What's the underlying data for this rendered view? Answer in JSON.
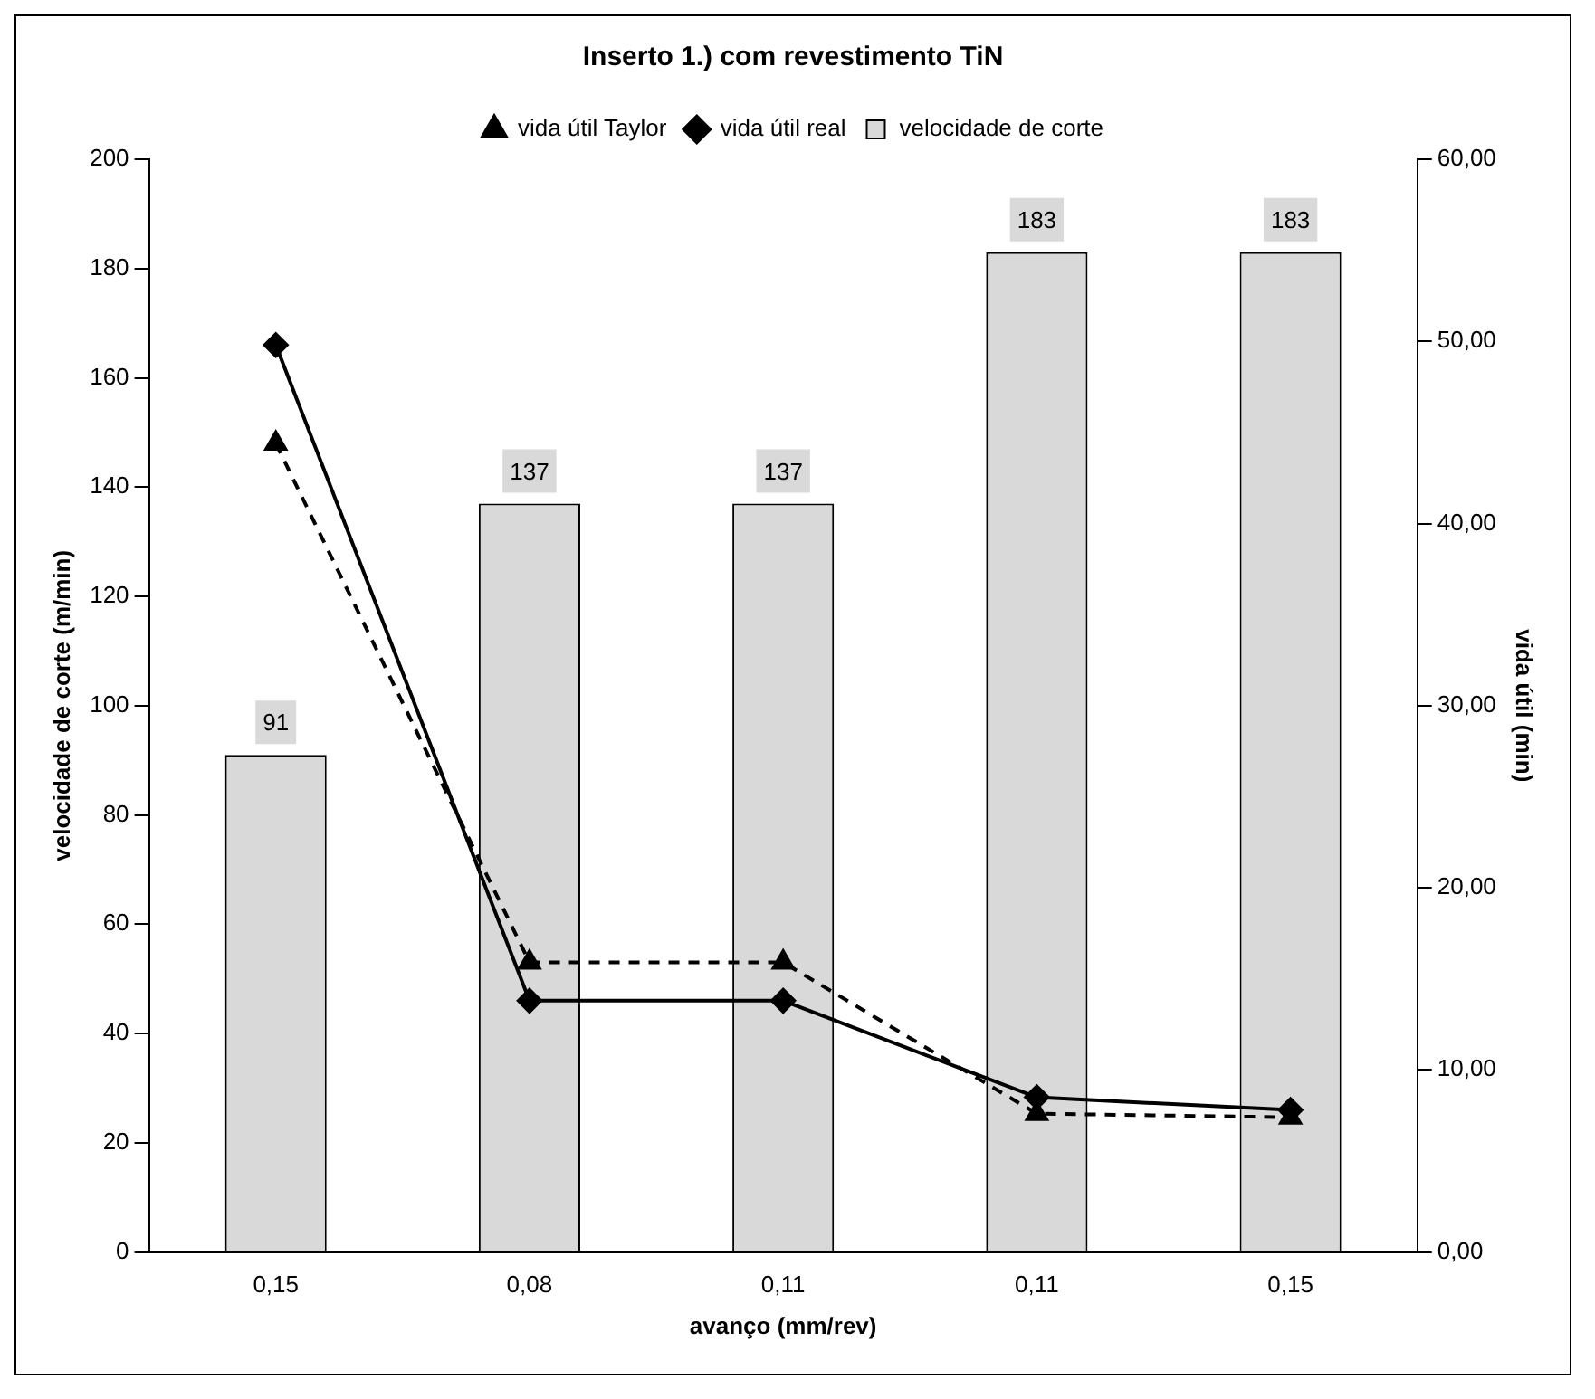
{
  "chart_data": {
    "type": "bar",
    "title": "Inserto 1.) com revestimento TiN",
    "xlabel": "avanço (mm/rev)",
    "ylabel": "velocidade de corte (m/min)",
    "y2label": "vida útil (min)",
    "categories": [
      "0,15",
      "0,08",
      "0,11",
      "0,11",
      "0,15"
    ],
    "series": [
      {
        "name": "velocidade de corte",
        "color": "#d9d9d9",
        "values": [
          91,
          137,
          137,
          183,
          183
        ]
      },
      {
        "name": "vida útil real",
        "type": "line",
        "axis": "y2",
        "color": "#000000",
        "marker": "diamond",
        "line_style": "solid",
        "values": [
          49.8,
          13.8,
          13.8,
          8.5,
          7.8
        ]
      },
      {
        "name": "vida útil Taylor",
        "type": "line",
        "axis": "y2",
        "color": "#000000",
        "marker": "triangle",
        "line_style": "dashed",
        "values": [
          44.4,
          15.9,
          15.9,
          7.6,
          7.4
        ]
      }
    ],
    "value_labels": [
      "91",
      "137",
      "137",
      "183",
      "183"
    ],
    "ylim": [
      0,
      200
    ],
    "yticks": [
      0,
      20,
      40,
      60,
      80,
      100,
      120,
      140,
      160,
      180,
      200
    ],
    "y2lim": [
      0,
      60
    ],
    "y2ticks": [
      {
        "value": 0,
        "label": "0,00"
      },
      {
        "value": 10,
        "label": "10,00"
      },
      {
        "value": 20,
        "label": "20,00"
      },
      {
        "value": 30,
        "label": "30,00"
      },
      {
        "value": 40,
        "label": "40,00"
      },
      {
        "value": 50,
        "label": "50,00"
      },
      {
        "value": 60,
        "label": "60,00"
      }
    ],
    "grid": false,
    "legend": "top"
  }
}
